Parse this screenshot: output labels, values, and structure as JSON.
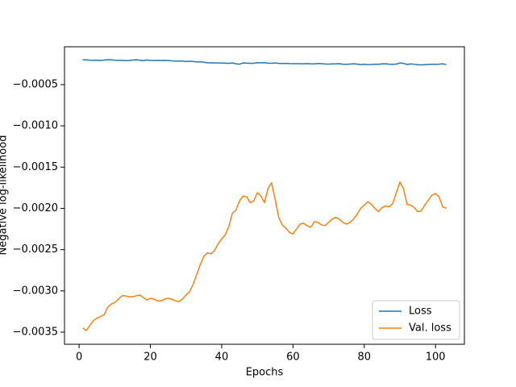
{
  "chart_data": {
    "type": "line",
    "xlabel": "Epochs",
    "ylabel": "Negative log-likelihood",
    "x": [
      1,
      2,
      3,
      4,
      5,
      6,
      7,
      8,
      9,
      10,
      11,
      12,
      13,
      14,
      15,
      16,
      17,
      18,
      19,
      20,
      21,
      22,
      23,
      24,
      25,
      26,
      27,
      28,
      29,
      30,
      31,
      32,
      33,
      34,
      35,
      36,
      37,
      38,
      39,
      40,
      41,
      42,
      43,
      44,
      45,
      46,
      47,
      48,
      49,
      50,
      51,
      52,
      53,
      54,
      55,
      56,
      57,
      58,
      59,
      60,
      61,
      62,
      63,
      64,
      65,
      66,
      67,
      68,
      69,
      70,
      71,
      72,
      73,
      74,
      75,
      76,
      77,
      78,
      79,
      80,
      81,
      82,
      83,
      84,
      85,
      86,
      87,
      88,
      89,
      90,
      91,
      92,
      93,
      94,
      95,
      96,
      97,
      98,
      99,
      100,
      101,
      102,
      103
    ],
    "series": [
      {
        "name": "Loss",
        "color": "#1f77b4",
        "values": [
          -0.0002,
          -0.0002,
          -0.000203,
          -0.000205,
          -0.000203,
          -0.000207,
          -0.000202,
          -0.000199,
          -0.000199,
          -0.000204,
          -0.000206,
          -0.000206,
          -0.000208,
          -0.000207,
          -0.000202,
          -0.000198,
          -0.000203,
          -0.00021,
          -0.000201,
          -0.000206,
          -0.000207,
          -0.000206,
          -0.000207,
          -0.000206,
          -0.000207,
          -0.000212,
          -0.000214,
          -0.000214,
          -0.000215,
          -0.00022,
          -0.000216,
          -0.000219,
          -0.000225,
          -0.000223,
          -0.000228,
          -0.000235,
          -0.000237,
          -0.000237,
          -0.000238,
          -0.000238,
          -0.00024,
          -0.000242,
          -0.000238,
          -0.000247,
          -0.000252,
          -0.000238,
          -0.00024,
          -0.000241,
          -0.000242,
          -0.000234,
          -0.000235,
          -0.000234,
          -0.00024,
          -0.000241,
          -0.000237,
          -0.000243,
          -0.000244,
          -0.000242,
          -0.000245,
          -0.000246,
          -0.000246,
          -0.000246,
          -0.000247,
          -0.000245,
          -0.000248,
          -0.000249,
          -0.000244,
          -0.000246,
          -0.00025,
          -0.000251,
          -0.000249,
          -0.000248,
          -0.000246,
          -0.000252,
          -0.000253,
          -0.000251,
          -0.000248,
          -0.000251,
          -0.000257,
          -0.000254,
          -0.000257,
          -0.000256,
          -0.000252,
          -0.000254,
          -0.000249,
          -0.000248,
          -0.000252,
          -0.000254,
          -0.000251,
          -0.000238,
          -0.000242,
          -0.000256,
          -0.000249,
          -0.000253,
          -0.000259,
          -0.000261,
          -0.000258,
          -0.000255,
          -0.000253,
          -0.000253,
          -0.000252,
          -0.000248,
          -0.000256
        ]
      },
      {
        "name": "Val. loss",
        "color": "#ff7f0e",
        "values": [
          -0.00345,
          -0.00348,
          -0.00342,
          -0.00336,
          -0.00333,
          -0.00331,
          -0.00329,
          -0.0032,
          -0.00316,
          -0.00314,
          -0.0031,
          -0.00306,
          -0.00306,
          -0.00307,
          -0.00307,
          -0.00306,
          -0.00305,
          -0.00308,
          -0.00311,
          -0.00309,
          -0.0031,
          -0.00312,
          -0.00312,
          -0.0031,
          -0.00309,
          -0.0031,
          -0.00312,
          -0.00313,
          -0.0031,
          -0.00305,
          -0.00301,
          -0.00292,
          -0.0028,
          -0.00268,
          -0.00258,
          -0.00254,
          -0.00255,
          -0.00251,
          -0.00243,
          -0.00237,
          -0.00232,
          -0.00222,
          -0.00206,
          -0.00202,
          -0.00191,
          -0.00185,
          -0.00186,
          -0.00193,
          -0.00191,
          -0.00181,
          -0.00185,
          -0.00193,
          -0.00176,
          -0.00169,
          -0.00189,
          -0.00211,
          -0.0022,
          -0.00224,
          -0.00229,
          -0.00231,
          -0.00225,
          -0.00219,
          -0.00218,
          -0.00221,
          -0.00223,
          -0.00216,
          -0.00217,
          -0.0022,
          -0.00221,
          -0.00217,
          -0.00213,
          -0.00211,
          -0.00213,
          -0.00217,
          -0.00219,
          -0.00217,
          -0.00213,
          -0.00207,
          -0.002,
          -0.00196,
          -0.00192,
          -0.00195,
          -0.002,
          -0.00204,
          -0.00199,
          -0.00197,
          -0.00198,
          -0.00194,
          -0.00181,
          -0.00168,
          -0.00176,
          -0.00195,
          -0.00196,
          -0.00199,
          -0.00204,
          -0.00203,
          -0.00196,
          -0.0019,
          -0.00184,
          -0.00182,
          -0.00186,
          -0.00198,
          -0.002
        ]
      }
    ],
    "xlim": [
      -4.1,
      108.1
    ],
    "xticks": [
      0,
      20,
      40,
      60,
      80,
      100
    ],
    "ylim": [
      -0.003647,
      -4.1e-05
    ],
    "yticks": [
      {
        "value": -0.0035,
        "label": "−0.0035"
      },
      {
        "value": -0.003,
        "label": "−0.0030"
      },
      {
        "value": -0.0025,
        "label": "−0.0025"
      },
      {
        "value": -0.002,
        "label": "−0.0020"
      },
      {
        "value": -0.0015,
        "label": "−0.0015"
      },
      {
        "value": -0.001,
        "label": "−0.0010"
      },
      {
        "value": -0.0005,
        "label": "−0.0005"
      }
    ],
    "grid": false,
    "legend": "lower right"
  }
}
